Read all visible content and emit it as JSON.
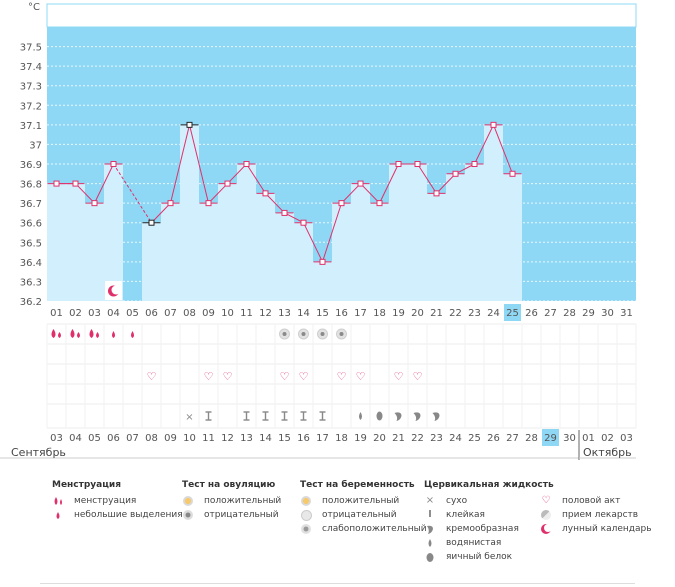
{
  "unit_label": "°C",
  "months": {
    "left": "Сентябрь",
    "right": "Октябрь"
  },
  "chart_data": {
    "type": "line",
    "ylim": [
      36.2,
      37.6
    ],
    "yticks": [
      "37.5",
      "37.4",
      "37.3",
      "37.2",
      "37.1",
      "37",
      "36.9",
      "36.8",
      "36.7",
      "36.6",
      "36.5",
      "36.4",
      "36.3",
      "36.2"
    ],
    "cycle_days": [
      "01",
      "02",
      "03",
      "04",
      "05",
      "06",
      "07",
      "08",
      "09",
      "10",
      "11",
      "12",
      "13",
      "14",
      "15",
      "16",
      "17",
      "18",
      "19",
      "20",
      "21",
      "22",
      "23",
      "24",
      "25",
      "26",
      "27",
      "28",
      "29",
      "30",
      "31"
    ],
    "calendar_dates": [
      "03",
      "04",
      "05",
      "06",
      "07",
      "08",
      "09",
      "10",
      "11",
      "12",
      "13",
      "14",
      "15",
      "16",
      "17",
      "18",
      "19",
      "20",
      "21",
      "22",
      "23",
      "24",
      "25",
      "26",
      "27",
      "28",
      "29",
      "30",
      "01",
      "02",
      "03"
    ],
    "red_date_indices": [
      5,
      6,
      12,
      13,
      19,
      20,
      26,
      27
    ],
    "today_index": 24,
    "temperatures": [
      36.8,
      36.8,
      36.7,
      36.9,
      null,
      36.6,
      36.7,
      37.1,
      36.7,
      36.8,
      36.9,
      36.75,
      36.65,
      36.6,
      36.4,
      36.7,
      36.8,
      36.7,
      36.9,
      36.9,
      36.75,
      36.85,
      36.9,
      37.1,
      36.85
    ]
  },
  "rows": {
    "menstruation": [
      "heavy",
      "heavy",
      "heavy",
      "light",
      "light",
      "",
      "",
      "",
      "",
      "",
      "",
      "",
      "",
      "",
      "",
      "",
      "",
      "",
      "",
      "",
      "",
      "",
      "",
      "",
      "",
      "",
      "",
      "",
      "",
      "",
      ""
    ],
    "ovulation": [
      "",
      "",
      "",
      "",
      "",
      "",
      "",
      "",
      "",
      "",
      "",
      "",
      "neg",
      "neg",
      "neg",
      "neg",
      "",
      "",
      "",
      "",
      "",
      "",
      "",
      "",
      "",
      "",
      "",
      "",
      "",
      "",
      ""
    ],
    "intercourse": [
      "",
      "",
      "",
      "",
      "",
      "h",
      "",
      "",
      "h",
      "h",
      "",
      "",
      "h",
      "h",
      "",
      "h",
      "h",
      "",
      "h",
      "h",
      "",
      "",
      "",
      "",
      "",
      "",
      "",
      "",
      "",
      "",
      ""
    ],
    "fluid": [
      "",
      "",
      "",
      "",
      "",
      "",
      "",
      "x",
      "t",
      "",
      "t",
      "t",
      "t",
      "t",
      "t",
      "",
      "w",
      "e",
      "c",
      "c",
      "c",
      "",
      "",
      "",
      "",
      "",
      "",
      "",
      "",
      "",
      ""
    ]
  },
  "legend": {
    "menstruation": {
      "title": "Менструация",
      "items": [
        "менструация",
        "небольшие выделения"
      ]
    },
    "ovulation": {
      "title": "Тест на овуляцию",
      "items": [
        "положительный",
        "отрицательный"
      ]
    },
    "pregnancy": {
      "title": "Тест на беременность",
      "items": [
        "положительный",
        "отрицательный",
        "слабоположительный"
      ]
    },
    "fluid": {
      "title": "Цервикальная жидкость",
      "items": [
        "сухо",
        "клейкая",
        "кремообразная",
        "водянистая",
        "яичный белок"
      ]
    },
    "other": {
      "items": [
        "половой акт",
        "прием лекарств",
        "лунный календарь"
      ]
    }
  },
  "colors": {
    "accent": "#e0306a",
    "sky": "#8fd8f5",
    "bar": "#d2effd",
    "today": "#8fd8f5"
  }
}
